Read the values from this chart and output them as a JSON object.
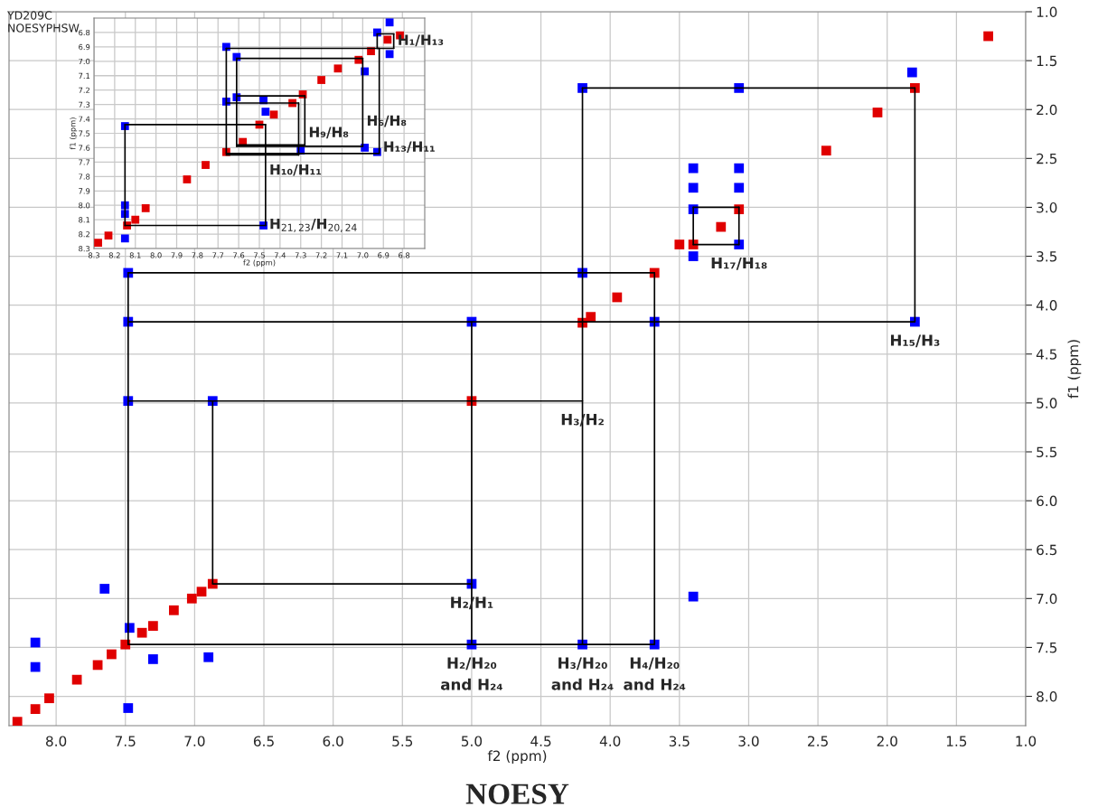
{
  "chart_data": [
    {
      "type": "scatter",
      "title": "NOESY",
      "xlabel": "f2 (ppm)",
      "ylabel": "f1 (ppm)",
      "xlim": [
        8.34,
        1.0
      ],
      "ylim": [
        8.3,
        1.0
      ],
      "grid": true,
      "xticks": [
        {
          "value": 8,
          "label": "8.0"
        },
        7.5,
        {
          "value": 7,
          "label": "7.0"
        },
        6.5,
        {
          "value": 6,
          "label": "6.0"
        },
        5.5,
        {
          "value": 5,
          "label": "5.0"
        },
        4.5,
        {
          "value": 4,
          "label": "4.0"
        },
        3.5,
        {
          "value": 3,
          "label": "3.0"
        },
        2.5,
        {
          "value": 2,
          "label": "2.0"
        },
        1.5,
        {
          "value": 1,
          "label": "1.0"
        }
      ],
      "yticks": [
        {
          "value": 1,
          "label": "1.0"
        },
        1.5,
        {
          "value": 2,
          "label": "2.0"
        },
        2.5,
        {
          "value": 3,
          "label": "3.0"
        },
        3.5,
        {
          "value": 4,
          "label": "4.0"
        },
        4.5,
        {
          "value": 5,
          "label": "5.0"
        },
        5.5,
        {
          "value": 6,
          "label": "6.0"
        },
        6.5,
        {
          "value": 7,
          "label": "7.0"
        },
        7.5,
        {
          "value": 8,
          "label": "8.0"
        }
      ],
      "series": [
        {
          "type": "line",
          "color": "#000000",
          "x": [
            4.2,
            1.8
          ],
          "values": [
            1.78,
            1.78
          ]
        },
        {
          "type": "line",
          "color": "#000000",
          "x": [
            7.48,
            1.8
          ],
          "values": [
            4.17,
            4.17
          ]
        },
        {
          "type": "line",
          "color": "#000000",
          "x": [
            3.4,
            3.07
          ],
          "values": [
            3.0,
            3.0
          ]
        },
        {
          "type": "line",
          "color": "#000000",
          "x": [
            3.4,
            3.07
          ],
          "values": [
            3.38,
            3.38
          ]
        },
        {
          "type": "line",
          "color": "#000000",
          "x": [
            7.48,
            3.68
          ],
          "values": [
            3.67,
            3.67
          ]
        },
        {
          "type": "line",
          "color": "#000000",
          "x": [
            7.48,
            4.2
          ],
          "values": [
            4.98,
            4.98
          ]
        },
        {
          "type": "line",
          "color": "#000000",
          "x": [
            6.87,
            5.0
          ],
          "values": [
            6.85,
            6.85
          ]
        },
        {
          "type": "line",
          "color": "#000000",
          "x": [
            7.48,
            3.68
          ],
          "values": [
            7.47,
            7.47
          ]
        },
        {
          "type": "line",
          "color": "#000000",
          "x": [
            1.8,
            1.8
          ],
          "values": [
            1.78,
            4.17
          ]
        },
        {
          "type": "line",
          "color": "#000000",
          "x": [
            4.2,
            4.2
          ],
          "values": [
            1.78,
            7.47
          ]
        },
        {
          "type": "line",
          "color": "#000000",
          "x": [
            3.4,
            3.4
          ],
          "values": [
            3.0,
            3.38
          ]
        },
        {
          "type": "line",
          "color": "#000000",
          "x": [
            3.07,
            3.07
          ],
          "values": [
            3.0,
            3.38
          ]
        },
        {
          "type": "line",
          "color": "#000000",
          "x": [
            3.68,
            3.68
          ],
          "values": [
            3.67,
            7.47
          ]
        },
        {
          "type": "line",
          "color": "#000000",
          "x": [
            5.0,
            5.0
          ],
          "values": [
            4.17,
            7.47
          ]
        },
        {
          "type": "line",
          "color": "#000000",
          "x": [
            6.87,
            6.87
          ],
          "values": [
            4.98,
            6.85
          ]
        },
        {
          "type": "line",
          "color": "#000000",
          "x": [
            7.48,
            7.48
          ],
          "values": [
            3.67,
            7.47
          ]
        },
        {
          "marker": "square",
          "color": "#0000ff",
          "x": [
            4.2,
            3.07,
            1.82,
            1.8,
            3.4,
            3.07,
            4.2,
            7.48,
            3.68,
            7.48,
            5.0,
            7.48,
            6.87,
            5.0,
            5.0,
            4.2,
            3.68,
            3.4,
            8.15,
            7.65,
            7.47,
            7.3,
            6.9,
            7.48,
            8.15,
            3.4,
            3.4,
            3.4,
            3.07,
            3.07
          ],
          "values": [
            1.78,
            1.78,
            1.62,
            4.17,
            3.02,
            3.38,
            3.67,
            3.67,
            4.17,
            4.17,
            4.17,
            4.98,
            4.98,
            6.85,
            7.47,
            7.47,
            7.47,
            6.98,
            7.45,
            6.9,
            7.3,
            7.62,
            7.6,
            8.12,
            7.7,
            2.6,
            2.8,
            3.5,
            2.6,
            2.8
          ]
        },
        {
          "marker": "square",
          "color": "#e00000",
          "x": [
            1.27,
            1.8,
            2.07,
            2.44,
            3.07,
            3.2,
            3.4,
            3.5,
            3.68,
            3.95,
            4.2,
            4.14,
            5.0,
            6.87,
            6.95,
            7.02,
            7.15,
            7.3,
            7.38,
            7.5,
            7.6,
            7.7,
            7.85,
            8.05,
            8.15,
            8.28
          ],
          "values": [
            1.25,
            1.78,
            2.03,
            2.42,
            3.02,
            3.2,
            3.38,
            3.38,
            3.67,
            3.92,
            4.18,
            4.12,
            4.98,
            6.85,
            6.93,
            7.0,
            7.12,
            7.28,
            7.35,
            7.47,
            7.57,
            7.68,
            7.83,
            8.02,
            8.13,
            8.26
          ]
        }
      ],
      "annotations": [
        {
          "text": "H₁₇/H₁₈",
          "x": 3.07,
          "y": 3.38
        },
        {
          "text": "H₁₅/H₃",
          "x": 1.8,
          "y": 4.17
        },
        {
          "text": "H₃/H₂",
          "x": 4.2,
          "y": 4.98
        },
        {
          "text": "H₂/H₁",
          "x": 5.0,
          "y": 6.85
        },
        {
          "text": "H₂/H₂₀\nand H₂₄",
          "x": 5.0,
          "y": 7.47
        },
        {
          "text": "H₃/H₂₀\nand H₂₄",
          "x": 4.2,
          "y": 7.47
        },
        {
          "text": "H₄/H₂₀\nand H₂₄",
          "x": 3.68,
          "y": 7.47
        }
      ]
    },
    {
      "type": "scatter",
      "xlabel": "f2 (ppm)",
      "ylabel": "f1 (ppm)",
      "xlim": [
        8.3,
        6.7
      ],
      "ylim": [
        8.3,
        6.7
      ],
      "grid": true,
      "xticks": [
        8.3,
        8.2,
        8.1,
        {
          "value": 8,
          "label": "8.0"
        },
        7.9,
        7.8,
        7.7,
        7.6,
        7.5,
        7.4,
        7.3,
        7.2,
        7.1,
        {
          "value": 7,
          "label": "7.0"
        },
        6.9,
        6.8
      ],
      "yticks": [
        6.8,
        6.9,
        {
          "value": 7,
          "label": "7.0"
        },
        7.1,
        7.2,
        7.3,
        7.4,
        7.5,
        7.6,
        7.7,
        7.8,
        7.9,
        {
          "value": 8,
          "label": "8.0"
        },
        8.1,
        8.2,
        8.3
      ],
      "series": [
        {
          "type": "line",
          "color": "#000000",
          "x": [
            6.93,
            6.85
          ],
          "values": [
            6.81,
            6.81
          ]
        },
        {
          "type": "line",
          "color": "#000000",
          "x": [
            6.93,
            6.85
          ],
          "values": [
            6.91,
            6.91
          ]
        },
        {
          "type": "line",
          "color": "#000000",
          "x": [
            6.93,
            6.93
          ],
          "values": [
            6.81,
            6.91
          ]
        },
        {
          "type": "line",
          "color": "#000000",
          "x": [
            6.85,
            6.85
          ],
          "values": [
            6.81,
            6.91
          ]
        },
        {
          "type": "line",
          "color": "#000000",
          "x": [
            7.66,
            6.92
          ],
          "values": [
            6.91,
            6.91
          ]
        },
        {
          "type": "line",
          "color": "#000000",
          "x": [
            7.66,
            6.92
          ],
          "values": [
            7.64,
            7.64
          ]
        },
        {
          "type": "line",
          "color": "#000000",
          "x": [
            7.66,
            7.66
          ],
          "values": [
            6.91,
            7.64
          ]
        },
        {
          "type": "line",
          "color": "#000000",
          "x": [
            6.92,
            6.92
          ],
          "values": [
            6.91,
            7.64
          ]
        },
        {
          "type": "line",
          "color": "#000000",
          "x": [
            7.61,
            7.0
          ],
          "values": [
            6.98,
            6.98
          ]
        },
        {
          "type": "line",
          "color": "#000000",
          "x": [
            7.61,
            7.0
          ],
          "values": [
            7.59,
            7.59
          ]
        },
        {
          "type": "line",
          "color": "#000000",
          "x": [
            7.61,
            7.61
          ],
          "values": [
            6.98,
            7.59
          ]
        },
        {
          "type": "line",
          "color": "#000000",
          "x": [
            7.0,
            7.0
          ],
          "values": [
            6.98,
            7.59
          ]
        },
        {
          "type": "line",
          "color": "#000000",
          "x": [
            7.61,
            7.28
          ],
          "values": [
            7.24,
            7.24
          ]
        },
        {
          "type": "line",
          "color": "#000000",
          "x": [
            7.61,
            7.28
          ],
          "values": [
            7.58,
            7.58
          ]
        },
        {
          "type": "line",
          "color": "#000000",
          "x": [
            7.28,
            7.28
          ],
          "values": [
            7.24,
            7.58
          ]
        },
        {
          "type": "line",
          "color": "#000000",
          "x": [
            7.66,
            7.31
          ],
          "values": [
            7.29,
            7.29
          ]
        },
        {
          "type": "line",
          "color": "#000000",
          "x": [
            7.66,
            7.31
          ],
          "values": [
            7.65,
            7.65
          ]
        },
        {
          "type": "line",
          "color": "#000000",
          "x": [
            7.31,
            7.31
          ],
          "values": [
            7.29,
            7.65
          ]
        },
        {
          "type": "line",
          "color": "#000000",
          "x": [
            8.15,
            7.47
          ],
          "values": [
            7.44,
            7.44
          ]
        },
        {
          "type": "line",
          "color": "#000000",
          "x": [
            8.15,
            7.47
          ],
          "values": [
            8.14,
            8.14
          ]
        },
        {
          "type": "line",
          "color": "#000000",
          "x": [
            8.15,
            8.15
          ],
          "values": [
            7.44,
            8.14
          ]
        },
        {
          "type": "line",
          "color": "#000000",
          "x": [
            7.47,
            7.47
          ],
          "values": [
            7.44,
            8.14
          ]
        },
        {
          "marker": "square",
          "color": "#0000ff",
          "x": [
            7.66,
            7.61,
            7.66,
            7.61,
            7.48,
            7.47,
            8.15,
            7.3,
            6.99,
            6.93,
            7.48,
            8.15,
            8.15,
            8.15,
            6.93,
            6.87,
            6.87,
            6.99
          ],
          "values": [
            6.9,
            6.97,
            7.28,
            7.25,
            7.27,
            7.35,
            7.45,
            7.62,
            7.6,
            7.63,
            8.14,
            8.0,
            8.06,
            8.23,
            6.8,
            6.73,
            6.95,
            7.07
          ]
        },
        {
          "marker": "square",
          "color": "#e00000",
          "x": [
            8.28,
            8.23,
            8.14,
            8.1,
            8.05,
            7.85,
            7.76,
            7.66,
            7.58,
            7.5,
            7.43,
            7.34,
            7.29,
            7.2,
            7.12,
            7.02,
            6.96,
            6.88,
            6.82
          ],
          "values": [
            8.26,
            8.21,
            8.14,
            8.1,
            8.02,
            7.82,
            7.72,
            7.63,
            7.56,
            7.44,
            7.37,
            7.29,
            7.23,
            7.13,
            7.05,
            6.99,
            6.93,
            6.85,
            6.82
          ]
        }
      ],
      "annotations": [
        "YD209C\nNOESYPHSW",
        {
          "text": "H₁/H₁₃",
          "x": 6.85,
          "y": 6.86
        },
        {
          "text": "H₉/H₈",
          "x": 7.28,
          "y": 7.5
        },
        {
          "text": "H₆/H₈",
          "x": 7.0,
          "y": 7.42
        },
        {
          "text": "H₁₀/H₁₁",
          "x": 7.47,
          "y": 7.76
        },
        {
          "text": "H₁₃/H₁₁",
          "x": 6.92,
          "y": 7.6
        },
        {
          "text": "H$_{21,23}$/H$_{20,24}$",
          "x": 7.47,
          "y": 8.14
        }
      ]
    }
  ]
}
